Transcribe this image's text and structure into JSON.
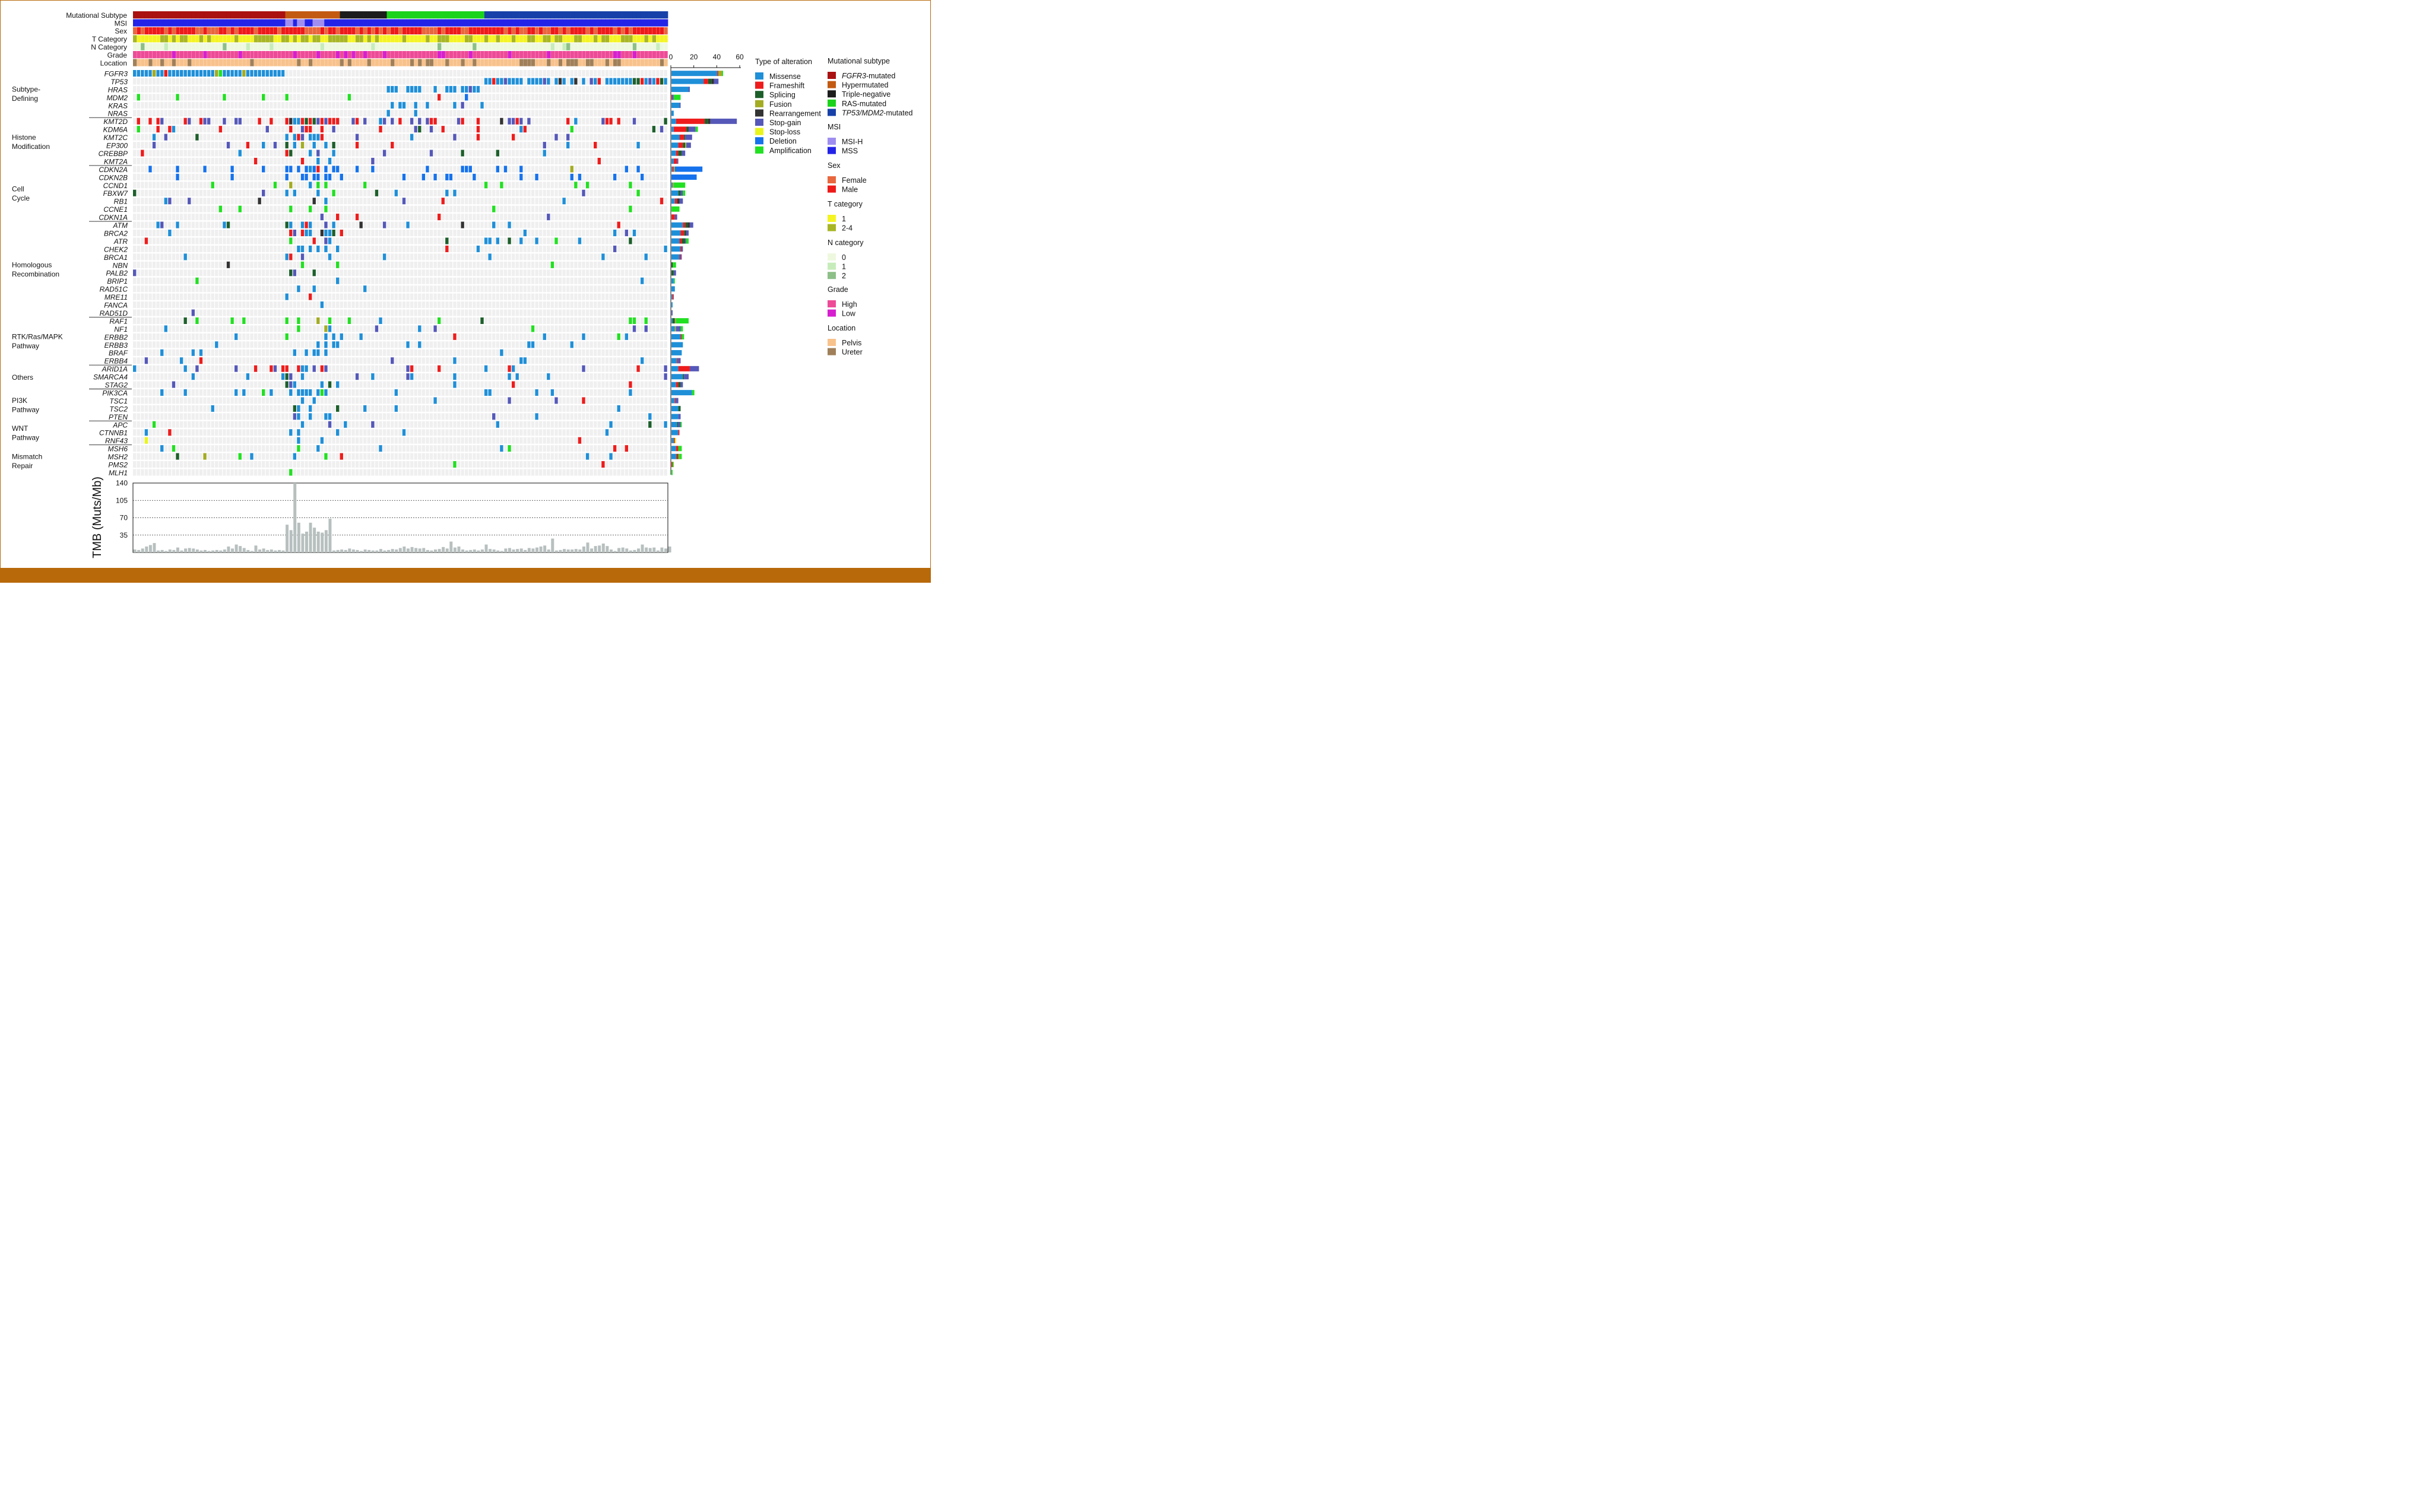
{
  "chart_data": {
    "type": "heatmap",
    "title": "",
    "n_samples": 137,
    "clinical_tracks": [
      {
        "label": "Mutational Subtype",
        "key": "subtype"
      },
      {
        "label": "MSI",
        "key": "msi"
      },
      {
        "label": "Sex",
        "key": "sex"
      },
      {
        "label": "T Category",
        "key": "t"
      },
      {
        "label": "N Category",
        "key": "n"
      },
      {
        "label": "Grade",
        "key": "grade"
      },
      {
        "label": "Location",
        "key": "loc"
      }
    ],
    "subtype_blocks": [
      {
        "subtype": "FGFR3-mutated",
        "count": 39
      },
      {
        "subtype": "Hypermutated",
        "count": 14
      },
      {
        "subtype": "Triple-negative",
        "count": 12
      },
      {
        "subtype": "RAS-mutated",
        "count": 25
      },
      {
        "subtype": "TP53/MDM2-mutated",
        "count": 47
      }
    ],
    "gene_groups": [
      {
        "name_lines": [
          "Subtype-",
          "Defining"
        ],
        "genes": [
          "FGFR3",
          "TP53",
          "HRAS",
          "MDM2",
          "KRAS",
          "NRAS"
        ]
      },
      {
        "name_lines": [
          "Histone",
          "Modification"
        ],
        "genes": [
          "KMT2D",
          "KDM6A",
          "KMT2C",
          "EP300",
          "CREBBP",
          "KMT2A"
        ]
      },
      {
        "name_lines": [
          "Cell",
          "Cycle"
        ],
        "genes": [
          "CDKN2A",
          "CDKN2B",
          "CCND1",
          "FBXW7",
          "RB1",
          "CCNE1",
          "CDKN1A"
        ]
      },
      {
        "name_lines": [
          "Homologous",
          "Recombination"
        ],
        "genes": [
          "ATM",
          "BRCA2",
          "ATR",
          "CHEK2",
          "BRCA1",
          "NBN",
          "PALB2",
          "BRIP1",
          "RAD51C",
          "MRE11",
          "FANCA",
          "RAD51D"
        ]
      },
      {
        "name_lines": [
          "RTK/Ras/MAPK",
          "Pathway"
        ],
        "genes": [
          "RAF1",
          "NF1",
          "ERBB2",
          "ERBB3",
          "BRAF",
          "ERBB4"
        ]
      },
      {
        "name_lines": [
          "Others"
        ],
        "genes": [
          "ARID1A",
          "SMARCA4",
          "STAG2"
        ]
      },
      {
        "name_lines": [
          "PI3K",
          "Pathway"
        ],
        "genes": [
          "PIK3CA",
          "TSC1",
          "TSC2",
          "PTEN"
        ]
      },
      {
        "name_lines": [
          "WNT",
          "Pathway"
        ],
        "genes": [
          "APC",
          "CTNNB1",
          "RNF43"
        ]
      },
      {
        "name_lines": [
          "Mismatch",
          "Repair"
        ],
        "genes": [
          "MSH6",
          "MSH2",
          "PMS2",
          "MLH1"
        ]
      }
    ],
    "gene_alteration_counts": {
      "FGFR3": {
        "Missense": 40,
        "Frameshift": 1,
        "Fusion": 3,
        "Amplification": 1
      },
      "TP53": {
        "Missense": 28,
        "Frameshift": 4,
        "Splicing": 3,
        "Rearrangement": 2,
        "Stop-gain": 4
      },
      "HRAS": {
        "Missense": 15,
        "Stop-gain": 1
      },
      "MDM2": {
        "Frameshift": 1,
        "Deletion": 1,
        "Amplification": 6
      },
      "KRAS": {
        "Missense": 7,
        "Stop-gain": 1
      },
      "NRAS": {
        "Missense": 2
      },
      "KMT2D": {
        "Missense": 4,
        "Frameshift": 25,
        "Splicing": 3,
        "Rearrangement": 2,
        "Stop-gain": 23
      },
      "KDM6A": {
        "Missense": 2,
        "Frameshift": 11,
        "Splicing": 2,
        "Stop-gain": 6,
        "Amplification": 2
      },
      "KMT2C": {
        "Missense": 7,
        "Frameshift": 4,
        "Splicing": 1,
        "Stop-gain": 6
      },
      "EP300": {
        "Missense": 6,
        "Frameshift": 4,
        "Splicing": 2,
        "Fusion": 1,
        "Stop-gain": 4
      },
      "CREBBP": {
        "Missense": 4,
        "Frameshift": 2,
        "Splicing": 3,
        "Stop-gain": 3
      },
      "KMT2A": {
        "Missense": 2,
        "Frameshift": 3,
        "Stop-gain": 1
      },
      "CDKN2A": {
        "Missense": 1,
        "Frameshift": 1,
        "Fusion": 1,
        "Deletion": 24
      },
      "CDKN2B": {
        "Deletion": 22
      },
      "CCND1": {
        "Missense": 1,
        "Fusion": 1,
        "Amplification": 10
      },
      "FBXW7": {
        "Missense": 6,
        "Splicing": 2,
        "Stop-gain": 2,
        "Amplification": 2
      },
      "RB1": {
        "Missense": 3,
        "Frameshift": 2,
        "Rearrangement": 2,
        "Stop-gain": 3
      },
      "CCNE1": {
        "Amplification": 7
      },
      "CDKN1A": {
        "Frameshift": 3,
        "Stop-gain": 2
      },
      "ATM": {
        "Missense": 10,
        "Frameshift": 2,
        "Splicing": 2,
        "Rearrangement": 2,
        "Stop-gain": 3
      },
      "BRCA2": {
        "Missense": 8,
        "Frameshift": 3,
        "Splicing": 1,
        "Rearrangement": 1,
        "Stop-gain": 2
      },
      "ATR": {
        "Missense": 7,
        "Frameshift": 2,
        "Splicing": 3,
        "Stop-gain": 1,
        "Amplification": 2
      },
      "CHEK2": {
        "Missense": 8,
        "Frameshift": 1,
        "Stop-gain": 1
      },
      "BRCA1": {
        "Missense": 7,
        "Frameshift": 1,
        "Stop-gain": 1
      },
      "NBN": {
        "Rearrangement": 1,
        "Amplification": 3
      },
      "PALB2": {
        "Splicing": 2,
        "Stop-gain": 2
      },
      "BRIP1": {
        "Missense": 2,
        "Amplification": 1
      },
      "RAD51C": {
        "Missense": 3
      },
      "MRE11": {
        "Missense": 1,
        "Frameshift": 1
      },
      "FANCA": {
        "Missense": 1
      },
      "RAD51D": {
        "Stop-gain": 1
      },
      "RAF1": {
        "Missense": 1,
        "Splicing": 2,
        "Fusion": 1,
        "Amplification": 11
      },
      "NF1": {
        "Missense": 3,
        "Stop-gain": 4,
        "Fusion": 1,
        "Amplification": 2
      },
      "ERBB2": {
        "Missense": 8,
        "Frameshift": 1,
        "Amplification": 2
      },
      "ERBB3": {
        "Missense": 10
      },
      "BRAF": {
        "Missense": 9
      },
      "ERBB4": {
        "Missense": 5,
        "Frameshift": 1,
        "Stop-gain": 2
      },
      "ARID1A": {
        "Missense": 6,
        "Frameshift": 10,
        "Stop-gain": 8
      },
      "SMARCA4": {
        "Missense": 10,
        "Splicing": 1,
        "Stop-gain": 4
      },
      "STAG2": {
        "Missense": 4,
        "Frameshift": 2,
        "Splicing": 2,
        "Stop-gain": 2
      },
      "PIK3CA": {
        "Missense": 18,
        "Amplification": 2
      },
      "TSC1": {
        "Missense": 3,
        "Frameshift": 1,
        "Stop-gain": 2
      },
      "TSC2": {
        "Missense": 6,
        "Splicing": 2
      },
      "PTEN": {
        "Missense": 6,
        "Stop-gain": 2
      },
      "APC": {
        "Missense": 5,
        "Splicing": 1,
        "Stop-gain": 2,
        "Amplification": 1
      },
      "CTNNB1": {
        "Missense": 6,
        "Frameshift": 1
      },
      "RNF43": {
        "Missense": 2,
        "Frameshift": 1,
        "Stop-loss": 1
      },
      "MSH6": {
        "Missense": 4,
        "Frameshift": 2,
        "Amplification": 3
      },
      "MSH2": {
        "Missense": 4,
        "Frameshift": 1,
        "Splicing": 1,
        "Fusion": 1,
        "Amplification": 2
      },
      "PMS2": {
        "Frameshift": 1,
        "Amplification": 1
      },
      "MLH1": {
        "Amplification": 1
      }
    },
    "tmb": {
      "ylabel": "TMB (Muts/Mb)",
      "yticks": [
        35,
        70,
        105,
        140
      ],
      "ylim": [
        0,
        140
      ],
      "values": [
        6,
        5,
        8,
        12,
        15,
        19,
        4,
        5,
        3,
        6,
        5,
        10,
        4,
        8,
        9,
        8,
        6,
        4,
        5,
        3,
        4,
        5,
        4,
        6,
        12,
        8,
        16,
        13,
        9,
        5,
        3,
        14,
        6,
        8,
        5,
        6,
        4,
        5,
        4,
        56,
        45,
        140,
        60,
        38,
        42,
        60,
        50,
        42,
        40,
        45,
        68,
        4,
        5,
        6,
        5,
        8,
        6,
        5,
        3,
        6,
        5,
        4,
        4,
        7,
        4,
        5,
        7,
        6,
        9,
        12,
        8,
        11,
        9,
        8,
        9,
        5,
        4,
        6,
        7,
        11,
        8,
        22,
        10,
        12,
        6,
        4,
        5,
        6,
        4,
        6,
        16,
        7,
        6,
        4,
        3,
        8,
        9,
        6,
        7,
        8,
        5,
        9,
        8,
        10,
        12,
        14,
        6,
        28,
        4,
        5,
        7,
        6,
        6,
        7,
        6,
        12,
        20,
        8,
        13,
        14,
        18,
        13,
        6,
        3,
        9,
        10,
        8,
        4,
        5,
        8,
        16,
        10,
        9,
        10,
        4,
        10,
        8,
        12
      ]
    },
    "bar_axis": {
      "ticks": [
        0,
        20,
        40,
        60
      ]
    }
  },
  "legend": {
    "type_of_alteration": {
      "title": "Type of alteration",
      "items": [
        {
          "label": "Missense",
          "color": "#1f8fd8"
        },
        {
          "label": "Frameshift",
          "color": "#ee1c1c"
        },
        {
          "label": "Splicing",
          "color": "#1d5f2b"
        },
        {
          "label": "Fusion",
          "color": "#a3ac22"
        },
        {
          "label": "Rearrangement",
          "color": "#333333"
        },
        {
          "label": "Stop-gain",
          "color": "#5558b8"
        },
        {
          "label": "Stop-loss",
          "color": "#e9f51b"
        },
        {
          "label": "Deletion",
          "color": "#1572ec"
        },
        {
          "label": "Amplification",
          "color": "#22e022"
        }
      ]
    },
    "mutational_subtype": {
      "title": "Mutational subtype",
      "items": [
        {
          "label": "FGFR3-mutated",
          "italic_prefix": "FGFR3",
          "rest": "-mutated",
          "color": "#aa1111"
        },
        {
          "label": "Hypermutated",
          "italic_prefix": "",
          "rest": "Hypermutated",
          "color": "#c35a11"
        },
        {
          "label": "Triple-negative",
          "italic_prefix": "",
          "rest": "Triple-negative",
          "color": "#1c1c1c"
        },
        {
          "label": "RAS-mutated",
          "italic_prefix": "",
          "rest": "RAS-mutated",
          "color": "#1ad31a"
        },
        {
          "label": "TP53/MDM2-mutated",
          "italic_prefix": "TP53/MDM2",
          "rest": "-mutated",
          "color": "#1741a9"
        }
      ]
    },
    "msi": {
      "title": "MSI",
      "items": [
        {
          "label": "MSI-H",
          "color": "#9f8ef0"
        },
        {
          "label": "MSS",
          "color": "#2323e8"
        }
      ]
    },
    "sex": {
      "title": "Sex",
      "items": [
        {
          "label": "Female",
          "color": "#e9673e"
        },
        {
          "label": "Male",
          "color": "#ee1a1a"
        }
      ]
    },
    "t_category": {
      "title": "T category",
      "items": [
        {
          "label": "1",
          "color": "#f4f423"
        },
        {
          "label": "2-4",
          "color": "#a8b625"
        }
      ]
    },
    "n_category": {
      "title": "N category",
      "items": [
        {
          "label": "0",
          "color": "#eef8df"
        },
        {
          "label": "1",
          "color": "#c7ecbb"
        },
        {
          "label": "2",
          "color": "#8dbf88"
        }
      ]
    },
    "grade": {
      "title": "Grade",
      "items": [
        {
          "label": "High",
          "color": "#ed4b97"
        },
        {
          "label": "Low",
          "color": "#d61fcf"
        }
      ]
    },
    "location": {
      "title": "Location",
      "items": [
        {
          "label": "Pelvis",
          "color": "#f8c28c"
        },
        {
          "label": "Ureter",
          "color": "#a0805a"
        }
      ]
    }
  }
}
